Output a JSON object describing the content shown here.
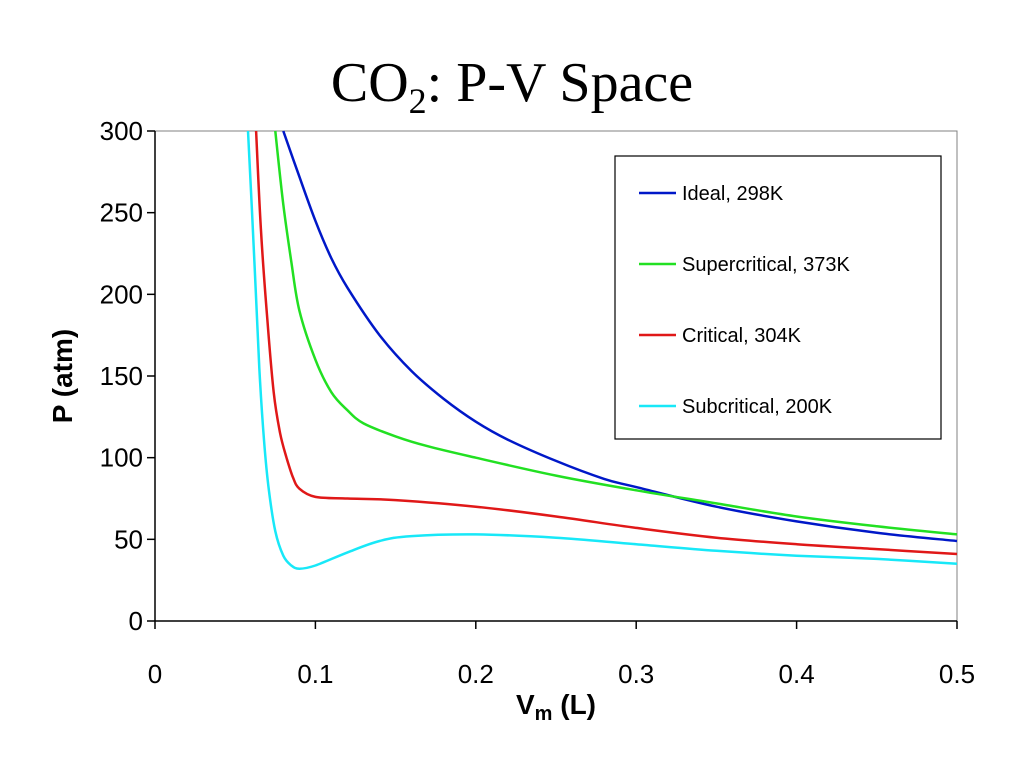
{
  "chart_data": {
    "type": "line",
    "title": {
      "prefix": "CO",
      "subscript": "2",
      "suffix": ": P-V Space"
    },
    "xlabel": {
      "main": "V",
      "subscript": "m",
      "suffix": " (L)"
    },
    "ylabel": "P (atm)",
    "xlim": [
      0,
      0.5
    ],
    "ylim": [
      0,
      300
    ],
    "x_ticks": [
      "0",
      "0.1",
      "0.2",
      "0.3",
      "0.4",
      "0.5"
    ],
    "y_ticks": [
      "0",
      "50",
      "100",
      "150",
      "200",
      "250",
      "300"
    ],
    "grid": false,
    "legend": "top-right",
    "series": [
      {
        "name": "Ideal, 298K",
        "color": "#0018c8",
        "x": [
          0.08,
          0.09,
          0.1,
          0.11,
          0.12,
          0.14,
          0.16,
          0.18,
          0.2,
          0.22,
          0.25,
          0.28,
          0.3,
          0.35,
          0.4,
          0.45,
          0.5
        ],
        "y": [
          300,
          272,
          245,
          222,
          204,
          175,
          153,
          136,
          122,
          111,
          98,
          87,
          82,
          70,
          61,
          54,
          49
        ]
      },
      {
        "name": "Supercritical, 373K",
        "color": "#22e022",
        "x": [
          0.075,
          0.08,
          0.085,
          0.09,
          0.1,
          0.11,
          0.12,
          0.13,
          0.15,
          0.17,
          0.2,
          0.25,
          0.3,
          0.35,
          0.4,
          0.45,
          0.5
        ],
        "y": [
          300,
          255,
          220,
          190,
          160,
          140,
          129,
          121,
          113,
          107,
          100,
          89,
          80,
          72,
          64,
          58,
          53
        ]
      },
      {
        "name": "Critical, 304K",
        "color": "#e01818",
        "x": [
          0.063,
          0.066,
          0.07,
          0.074,
          0.078,
          0.082,
          0.086,
          0.09,
          0.1,
          0.12,
          0.15,
          0.2,
          0.25,
          0.3,
          0.35,
          0.4,
          0.45,
          0.5
        ],
        "y": [
          300,
          240,
          185,
          140,
          115,
          100,
          88,
          81,
          76,
          75,
          74,
          70,
          64,
          57,
          51,
          47,
          44,
          41
        ]
      },
      {
        "name": "Subcritical, 200K",
        "color": "#18e8f8",
        "x": [
          0.058,
          0.062,
          0.065,
          0.068,
          0.071,
          0.075,
          0.08,
          0.085,
          0.09,
          0.1,
          0.12,
          0.14,
          0.16,
          0.2,
          0.25,
          0.3,
          0.35,
          0.4,
          0.45,
          0.5
        ],
        "y": [
          300,
          220,
          155,
          110,
          80,
          55,
          40,
          34,
          32,
          34,
          42,
          49,
          52,
          53,
          51,
          47,
          43,
          40,
          38,
          35
        ]
      }
    ]
  }
}
